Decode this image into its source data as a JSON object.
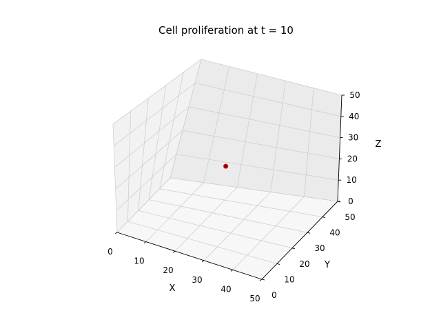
{
  "chart_data": {
    "type": "scatter",
    "projection": "3d",
    "title": "Cell proliferation at t = 10",
    "xlabel": "X",
    "ylabel": "Y",
    "zlabel": "Z",
    "xlim": [
      0,
      50
    ],
    "ylim": [
      0,
      50
    ],
    "zlim": [
      0,
      50
    ],
    "xticks": [
      "0",
      "10",
      "20",
      "30",
      "40",
      "50"
    ],
    "yticks": [
      "0",
      "10",
      "20",
      "30",
      "40",
      "50"
    ],
    "zticks": [
      "0",
      "10",
      "20",
      "30",
      "40",
      "50"
    ],
    "grid": true,
    "points": [
      {
        "x": 25,
        "y": 25,
        "z": 25
      }
    ],
    "colors": {
      "marker_face": "#8b0000",
      "marker_edge": "#cc0000",
      "pane_side": "#f2f2f2",
      "pane_back": "#ebebeb",
      "pane_floor": "#f7f7f7",
      "grid": "#cfcfcf"
    }
  }
}
